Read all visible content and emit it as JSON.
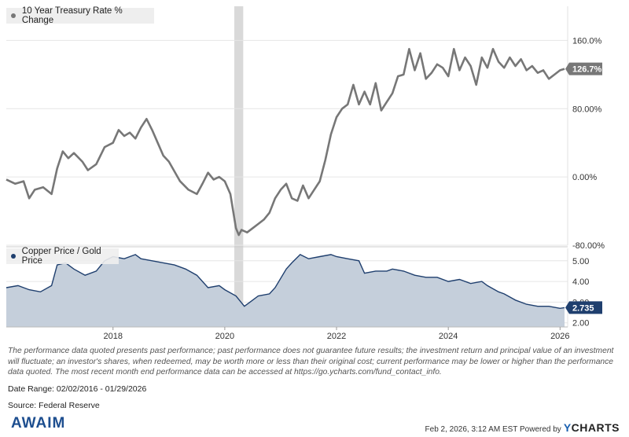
{
  "chart_data": [
    {
      "type": "line",
      "title": "",
      "legend_label": "10 Year Treasury Rate % Change",
      "series_color": "#777777",
      "y_axis_side": "right",
      "ylim": [
        -80,
        200
      ],
      "y_ticks": [
        -80,
        0,
        80,
        160
      ],
      "y_tick_labels": [
        "-80.00%",
        "0.00%",
        "80.00%",
        "160.0%"
      ],
      "last_value_label": "126.7%",
      "last_value": 126.7,
      "grid": true,
      "legend_position": "top-left",
      "recession_shading": {
        "start": 2020.17,
        "end": 2020.33
      },
      "x": [
        2016.09,
        2016.25,
        2016.4,
        2016.5,
        2016.6,
        2016.75,
        2016.9,
        2017.0,
        2017.1,
        2017.2,
        2017.3,
        2017.45,
        2017.55,
        2017.7,
        2017.85,
        2018.0,
        2018.1,
        2018.2,
        2018.3,
        2018.4,
        2018.5,
        2018.6,
        2018.7,
        2018.8,
        2018.9,
        2019.0,
        2019.2,
        2019.35,
        2019.5,
        2019.6,
        2019.7,
        2019.8,
        2019.9,
        2020.0,
        2020.1,
        2020.2,
        2020.25,
        2020.3,
        2020.4,
        2020.5,
        2020.6,
        2020.7,
        2020.8,
        2020.9,
        2021.0,
        2021.1,
        2021.2,
        2021.3,
        2021.4,
        2021.5,
        2021.6,
        2021.7,
        2021.8,
        2021.9,
        2022.0,
        2022.1,
        2022.2,
        2022.3,
        2022.4,
        2022.5,
        2022.6,
        2022.7,
        2022.8,
        2022.9,
        2023.0,
        2023.1,
        2023.2,
        2023.3,
        2023.4,
        2023.5,
        2023.6,
        2023.7,
        2023.8,
        2023.9,
        2024.0,
        2024.1,
        2024.2,
        2024.3,
        2024.4,
        2024.5,
        2024.6,
        2024.7,
        2024.8,
        2024.9,
        2025.0,
        2025.1,
        2025.2,
        2025.3,
        2025.4,
        2025.5,
        2025.6,
        2025.7,
        2025.8,
        2025.9,
        2026.0,
        2026.08
      ],
      "y": [
        -3,
        -8,
        -5,
        -25,
        -15,
        -12,
        -20,
        10,
        30,
        22,
        28,
        18,
        8,
        15,
        35,
        40,
        55,
        48,
        52,
        45,
        58,
        68,
        55,
        40,
        25,
        18,
        -5,
        -15,
        -20,
        -8,
        5,
        -3,
        0,
        -5,
        -20,
        -60,
        -68,
        -62,
        -65,
        -60,
        -55,
        -50,
        -42,
        -25,
        -15,
        -8,
        -25,
        -28,
        -10,
        -25,
        -15,
        -5,
        20,
        50,
        70,
        80,
        85,
        108,
        85,
        100,
        85,
        110,
        78,
        88,
        98,
        118,
        120,
        150,
        125,
        145,
        115,
        122,
        132,
        128,
        118,
        150,
        125,
        140,
        130,
        108,
        140,
        128,
        150,
        135,
        128,
        140,
        130,
        138,
        125,
        130,
        122,
        125,
        115,
        120,
        125,
        126.7
      ]
    },
    {
      "type": "area",
      "title": "",
      "legend_label": "Copper Price / Gold Price",
      "series_color": "#1f3f6e",
      "fill_color": "#c5cfdb",
      "y_axis_side": "right",
      "ylim": [
        1.8,
        5.6
      ],
      "y_ticks": [
        2.0,
        3.0,
        4.0,
        5.0
      ],
      "y_tick_labels": [
        "2.00",
        "3.00",
        "4.00",
        "5.00"
      ],
      "last_value_label": "2.735",
      "last_value": 2.735,
      "grid": true,
      "legend_position": "top-left",
      "x": [
        2016.09,
        2016.3,
        2016.5,
        2016.7,
        2016.9,
        2017.0,
        2017.15,
        2017.3,
        2017.5,
        2017.7,
        2017.85,
        2018.0,
        2018.2,
        2018.4,
        2018.5,
        2018.7,
        2018.9,
        2019.1,
        2019.3,
        2019.5,
        2019.7,
        2019.9,
        2020.0,
        2020.2,
        2020.35,
        2020.45,
        2020.6,
        2020.8,
        2020.9,
        2021.1,
        2021.2,
        2021.35,
        2021.5,
        2021.7,
        2021.9,
        2022.0,
        2022.2,
        2022.4,
        2022.5,
        2022.7,
        2022.9,
        2023.0,
        2023.2,
        2023.4,
        2023.6,
        2023.8,
        2024.0,
        2024.2,
        2024.4,
        2024.6,
        2024.7,
        2024.9,
        2025.0,
        2025.2,
        2025.4,
        2025.6,
        2025.8,
        2026.0,
        2026.08
      ],
      "y": [
        3.7,
        3.8,
        3.6,
        3.5,
        3.8,
        4.8,
        4.9,
        4.6,
        4.3,
        4.5,
        5.0,
        5.2,
        5.1,
        5.3,
        5.1,
        5.0,
        4.9,
        4.8,
        4.6,
        4.3,
        3.7,
        3.8,
        3.6,
        3.3,
        2.8,
        3.0,
        3.3,
        3.4,
        3.7,
        4.6,
        4.9,
        5.3,
        5.1,
        5.2,
        5.3,
        5.2,
        5.1,
        5.0,
        4.4,
        4.5,
        4.5,
        4.6,
        4.5,
        4.3,
        4.2,
        4.2,
        4.0,
        4.1,
        3.9,
        4.0,
        3.8,
        3.5,
        3.4,
        3.1,
        2.9,
        2.8,
        2.8,
        2.7,
        2.735
      ]
    }
  ],
  "x_axis": {
    "ticks": [
      2018,
      2020,
      2022,
      2024,
      2026
    ],
    "tick_labels": [
      "2018",
      "2020",
      "2022",
      "2024",
      "2026"
    ],
    "xlim": [
      2016.09,
      2026.08
    ]
  },
  "disclaimer": "The performance data quoted presents past performance; past performance does not guarantee future results; the investment return and principal value of an investment will fluctuate; an investor's shares, when redeemed, may be worth more or less than their original cost; current performance may be lower or higher than the performance data quoted. The most recent month end performance data can be accessed at https://go.ycharts.com/fund_contact_info.",
  "date_range": "Date Range: 02/02/2016 - 01/29/2026",
  "source": "Source: Federal Reserve",
  "footer": {
    "logo": "AWAIM",
    "timestamp": "Feb 2, 2026, 3:12 AM EST Powered by",
    "brand_y": "Y",
    "brand_rest": "CHARTS"
  }
}
